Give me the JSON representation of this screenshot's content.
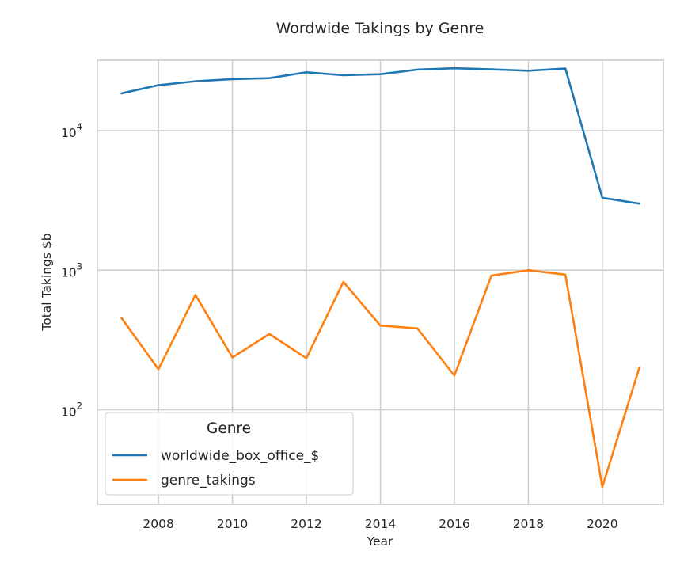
{
  "chart_data": {
    "type": "line",
    "title": "Wordwide Takings by Genre",
    "xlabel": "Year",
    "ylabel": "Total Takings $b",
    "yscale": "log",
    "xlim": [
      2006.35,
      2021.65
    ],
    "ylim": [
      21,
      32000
    ],
    "x": [
      2007,
      2008,
      2009,
      2010,
      2011,
      2012,
      2013,
      2014,
      2015,
      2016,
      2017,
      2018,
      2019,
      2020,
      2021
    ],
    "x_ticks": [
      "2008",
      "2010",
      "2012",
      "2014",
      "2016",
      "2018",
      "2020"
    ],
    "y_ticks": [
      {
        "base": "10",
        "exp": "2",
        "value": 100
      },
      {
        "base": "10",
        "exp": "3",
        "value": 1000
      },
      {
        "base": "10",
        "exp": "4",
        "value": 10000
      }
    ],
    "grid": true,
    "legend": {
      "title": "Genre",
      "placement": "lower-left"
    },
    "series": [
      {
        "name": "worldwide_box_office_$",
        "color": "#1f77b4",
        "values": [
          18500,
          21200,
          22600,
          23400,
          23800,
          26200,
          25000,
          25400,
          27400,
          28000,
          27500,
          26900,
          27900,
          3300,
          3000
        ]
      },
      {
        "name": "genre_takings",
        "color": "#ff7f0e",
        "values": [
          455,
          195,
          665,
          237,
          349,
          234,
          825,
          401,
          383,
          176,
          915,
          1000,
          930,
          28,
          200
        ]
      }
    ]
  }
}
